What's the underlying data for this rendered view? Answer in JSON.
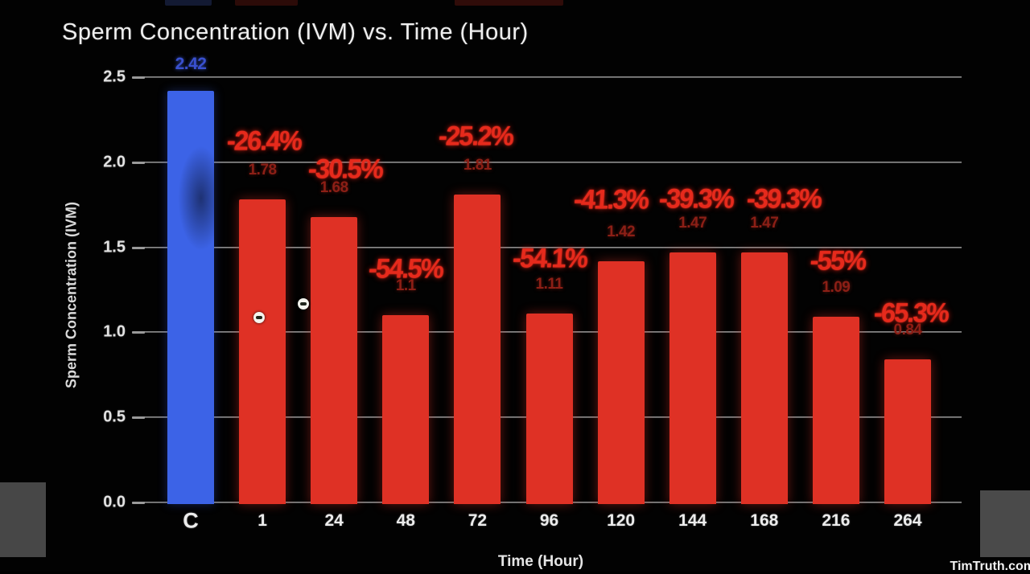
{
  "chart": {
    "title": "Sperm Concentration (IVM) vs. Time (Hour)",
    "x_axis_title": "Time (Hour)",
    "y_axis_title": "Sperm Concentration (IVM)"
  },
  "watermark": "TimTruth.com",
  "colors": {
    "control_bar": "#3c63e7",
    "treatment_bar": "#df3125",
    "pct_text": "#e62a1c",
    "value_text": "#8c1f16",
    "control_value_text": "#3950cf",
    "axis_text": "#ececec",
    "background": "#020202"
  },
  "chart_data": {
    "type": "bar",
    "title": "Sperm Concentration (IVM) vs. Time (Hour)",
    "xlabel": "Time (Hour)",
    "ylabel": "Sperm Concentration (IVM)",
    "ylim": [
      0,
      2.5
    ],
    "y_ticks": [
      "2.5",
      "2.0",
      "1.5",
      "1.0",
      "0.5",
      "0.0"
    ],
    "grid": true,
    "categories": [
      "C",
      "1",
      "24",
      "48",
      "72",
      "96",
      "120",
      "144",
      "168",
      "216",
      "264"
    ],
    "values": [
      2.42,
      1.78,
      1.68,
      1.1,
      1.81,
      1.11,
      1.42,
      1.47,
      1.47,
      1.09,
      0.84
    ],
    "bars": [
      {
        "category": "C",
        "value": 2.42,
        "value_label": "2.42",
        "pct_label": null,
        "control": true
      },
      {
        "category": "1",
        "value": 1.78,
        "value_label": "1.78",
        "pct_label": "-26.4%",
        "pct_dx": 2,
        "pct_dy": -7
      },
      {
        "category": "24",
        "value": 1.68,
        "value_label": "1.68",
        "pct_label": "-30.5%",
        "pct_dx": 14,
        "pct_dy": 6
      },
      {
        "category": "48",
        "value": 1.1,
        "value_label": "1.1",
        "pct_label": "-54.5%",
        "pct_dx": 0,
        "pct_dy": 8
      },
      {
        "category": "72",
        "value": 1.81,
        "value_label": "1.81",
        "pct_label": "-25.2%",
        "pct_dx": -2,
        "pct_dy": -7
      },
      {
        "category": "96",
        "value": 1.11,
        "value_label": "1.11",
        "pct_label": "-54.1%",
        "pct_dx": 0,
        "pct_dy": -3
      },
      {
        "category": "120",
        "value": 1.42,
        "value_label": "1.42",
        "pct_label": "-41.3%",
        "pct_dx": -13,
        "pct_dy": -11
      },
      {
        "category": "144",
        "value": 1.47,
        "value_label": "1.47",
        "pct_label": "-39.3%",
        "pct_dx": 4,
        "pct_dy": -1
      },
      {
        "category": "168",
        "value": 1.47,
        "value_label": "1.47",
        "pct_label": "-39.3%",
        "pct_dx": 24,
        "pct_dy": -1
      },
      {
        "category": "216",
        "value": 1.09,
        "value_label": "1.09",
        "pct_label": "-55%",
        "pct_dx": 2,
        "pct_dy": -4
      },
      {
        "category": "264",
        "value": 0.84,
        "value_label": "0.84",
        "pct_label": "-65.3%",
        "pct_dx": 4,
        "pct_dy": 8
      }
    ]
  }
}
